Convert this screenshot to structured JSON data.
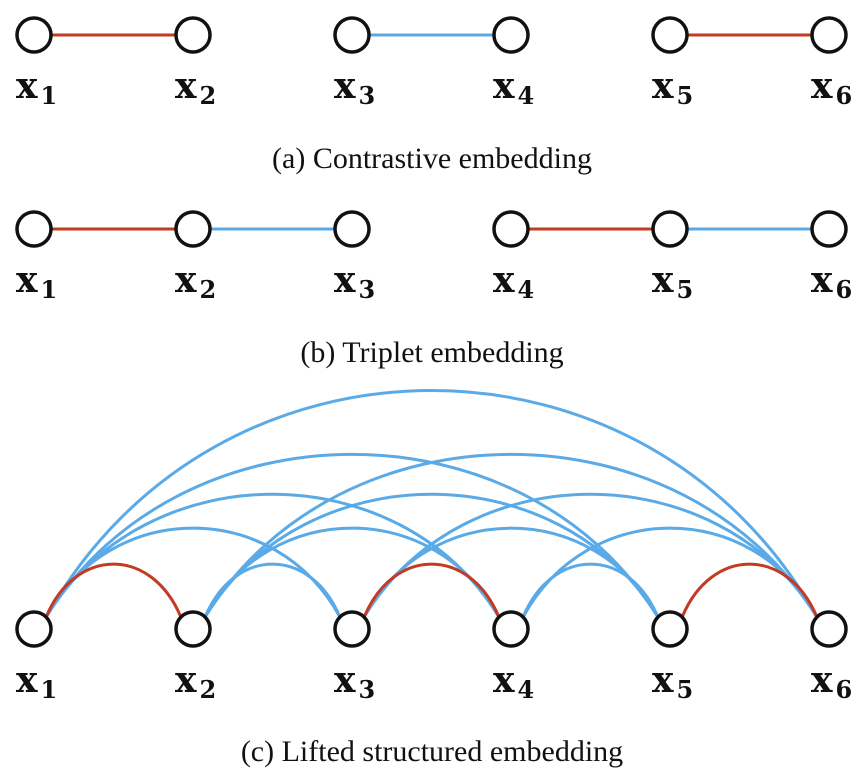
{
  "colors": {
    "positive": "#c23b22",
    "negative": "#5aaae8",
    "node_stroke": "#111111"
  },
  "panels": {
    "a": {
      "caption": "(a) Contrastive embedding",
      "nodes": [
        {
          "var": "x",
          "sub": "1"
        },
        {
          "var": "x",
          "sub": "2"
        },
        {
          "var": "x",
          "sub": "3"
        },
        {
          "var": "x",
          "sub": "4"
        },
        {
          "var": "x",
          "sub": "5"
        },
        {
          "var": "x",
          "sub": "6"
        }
      ],
      "edges": [
        {
          "from": 0,
          "to": 1,
          "kind": "positive"
        },
        {
          "from": 2,
          "to": 3,
          "kind": "negative"
        },
        {
          "from": 4,
          "to": 5,
          "kind": "positive"
        }
      ]
    },
    "b": {
      "caption": "(b) Triplet embedding",
      "nodes": [
        {
          "var": "x",
          "sub": "1"
        },
        {
          "var": "x",
          "sub": "2"
        },
        {
          "var": "x",
          "sub": "3"
        },
        {
          "var": "x",
          "sub": "4"
        },
        {
          "var": "x",
          "sub": "5"
        },
        {
          "var": "x",
          "sub": "6"
        }
      ],
      "edges": [
        {
          "from": 0,
          "to": 1,
          "kind": "positive"
        },
        {
          "from": 1,
          "to": 2,
          "kind": "negative"
        },
        {
          "from": 3,
          "to": 4,
          "kind": "positive"
        },
        {
          "from": 4,
          "to": 5,
          "kind": "negative"
        }
      ]
    },
    "c": {
      "caption": "(c) Lifted structured embedding",
      "nodes": [
        {
          "var": "x",
          "sub": "1"
        },
        {
          "var": "x",
          "sub": "2"
        },
        {
          "var": "x",
          "sub": "3"
        },
        {
          "var": "x",
          "sub": "4"
        },
        {
          "var": "x",
          "sub": "5"
        },
        {
          "var": "x",
          "sub": "6"
        }
      ],
      "edges": [
        {
          "from": 0,
          "to": 1,
          "kind": "positive"
        },
        {
          "from": 2,
          "to": 3,
          "kind": "positive"
        },
        {
          "from": 4,
          "to": 5,
          "kind": "positive"
        },
        {
          "from": 0,
          "to": 2,
          "kind": "negative"
        },
        {
          "from": 0,
          "to": 3,
          "kind": "negative"
        },
        {
          "from": 0,
          "to": 4,
          "kind": "negative"
        },
        {
          "from": 0,
          "to": 5,
          "kind": "negative"
        },
        {
          "from": 1,
          "to": 2,
          "kind": "negative"
        },
        {
          "from": 1,
          "to": 3,
          "kind": "negative"
        },
        {
          "from": 1,
          "to": 4,
          "kind": "negative"
        },
        {
          "from": 1,
          "to": 5,
          "kind": "negative"
        },
        {
          "from": 2,
          "to": 4,
          "kind": "negative"
        },
        {
          "from": 2,
          "to": 5,
          "kind": "negative"
        },
        {
          "from": 3,
          "to": 4,
          "kind": "negative"
        },
        {
          "from": 3,
          "to": 5,
          "kind": "negative"
        }
      ]
    }
  }
}
